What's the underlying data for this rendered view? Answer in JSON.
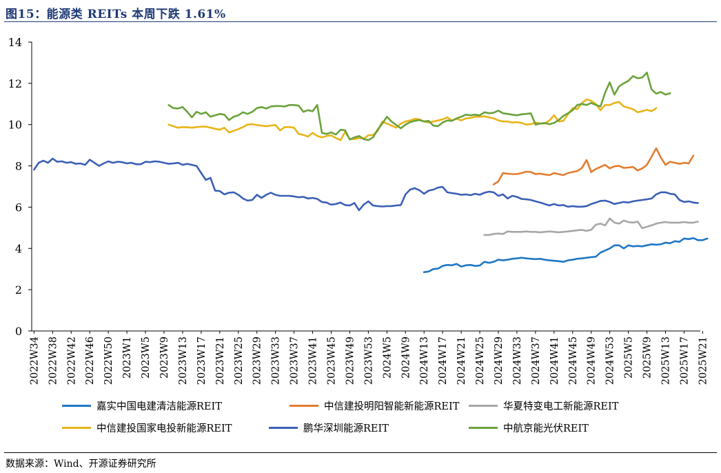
{
  "title": "图15：能源类 REITs 本周下跌 1.61%",
  "source": "数据来源：Wind、开源证券研究所",
  "chart_data": {
    "type": "line",
    "title": "图15：能源类 REITs 本周下跌 1.61%",
    "xlabel": "",
    "ylabel": "",
    "ylim": [
      0,
      14
    ],
    "yticks": [
      0,
      2,
      4,
      6,
      8,
      10,
      12,
      14
    ],
    "grid": false,
    "legend_position": "bottom",
    "x_tick_labels": [
      "2022W34",
      "2022W38",
      "2022W42",
      "2022W46",
      "2022W50",
      "2023W1",
      "2023W5",
      "2023W9",
      "2023W13",
      "2023W17",
      "2023W21",
      "2023W25",
      "2023W29",
      "2023W33",
      "2023W37",
      "2023W41",
      "2023W45",
      "2023W49",
      "2023W53",
      "2024W5",
      "2024W9",
      "2024W13",
      "2024W17",
      "2024W21",
      "2024W25",
      "2024W29",
      "2024W33",
      "2024W37",
      "2024W41",
      "2024W45",
      "2024W49",
      "2024W53",
      "2025W5",
      "2025W9",
      "2025W13",
      "2025W17",
      "2025W21"
    ],
    "series": [
      {
        "name": "嘉实中国电建清洁能源REIT",
        "color": "#1f77c4",
        "start_index": 84,
        "values": [
          2.85,
          2.88,
          3.0,
          3.02,
          3.15,
          3.2,
          3.18,
          3.25,
          3.12,
          3.18,
          3.2,
          3.15,
          3.17,
          3.35,
          3.3,
          3.35,
          3.45,
          3.42,
          3.45,
          3.5,
          3.52,
          3.55,
          3.52,
          3.5,
          3.48,
          3.5,
          3.45,
          3.42,
          3.4,
          3.38,
          3.35,
          3.42,
          3.45,
          3.5,
          3.52,
          3.55,
          3.58,
          3.6,
          3.8,
          3.9,
          4.0,
          4.15,
          4.15,
          4.0,
          4.15,
          4.1,
          4.12,
          4.1,
          4.15,
          4.2,
          4.18,
          4.2,
          4.28,
          4.25,
          4.35,
          4.32,
          4.48,
          4.45,
          4.5,
          4.4,
          4.4,
          4.48
        ]
      },
      {
        "name": "中信建投明阳智能新能源REIT",
        "color": "#e37b2e",
        "start_index": 99,
        "values": [
          7.1,
          7.25,
          7.65,
          7.62,
          7.6,
          7.6,
          7.65,
          7.72,
          7.7,
          7.6,
          7.62,
          7.58,
          7.55,
          7.65,
          7.6,
          7.55,
          7.65,
          7.7,
          7.75,
          7.9,
          8.28,
          7.7,
          7.85,
          7.95,
          8.05,
          7.88,
          7.98,
          8.0,
          7.9,
          7.92,
          7.95,
          7.78,
          7.88,
          8.05,
          8.45,
          8.85,
          8.4,
          8.05,
          8.2,
          8.15,
          8.1,
          8.15,
          8.12,
          8.5
        ]
      },
      {
        "name": "华夏特变电工新能源REIT",
        "color": "#a6a6a6",
        "start_index": 97,
        "values": [
          4.65,
          4.65,
          4.7,
          4.72,
          4.7,
          4.82,
          4.8,
          4.8,
          4.8,
          4.82,
          4.8,
          4.8,
          4.78,
          4.8,
          4.82,
          4.8,
          4.78,
          4.8,
          4.82,
          4.85,
          4.88,
          4.9,
          4.85,
          4.9,
          5.15,
          5.2,
          5.12,
          5.45,
          5.25,
          5.2,
          5.35,
          5.28,
          5.25,
          5.3,
          4.98,
          5.05,
          5.12,
          5.2,
          5.25,
          5.28,
          5.25,
          5.25,
          5.25,
          5.28,
          5.25,
          5.25,
          5.3
        ]
      },
      {
        "name": "中信建投国家电投新能源REIT",
        "color": "#e8b418",
        "start_index": 29,
        "values": [
          10.0,
          9.92,
          9.85,
          9.88,
          9.87,
          9.85,
          9.88,
          9.9,
          9.9,
          9.85,
          9.8,
          9.75,
          9.85,
          9.62,
          9.7,
          9.78,
          9.88,
          10.0,
          10.02,
          9.98,
          9.95,
          9.92,
          9.95,
          9.98,
          9.72,
          9.88,
          9.88,
          9.85,
          9.55,
          9.5,
          9.42,
          9.6,
          9.45,
          9.38,
          9.45,
          9.48,
          9.35,
          9.25,
          9.65,
          9.3,
          9.3,
          9.35,
          9.32,
          9.48,
          9.5,
          9.68,
          10.15,
          10.05,
          9.95,
          9.85,
          10.05,
          10.15,
          10.2,
          10.28,
          10.25,
          10.15,
          10.1,
          10.15,
          10.2,
          10.25,
          10.35,
          10.2,
          10.28,
          10.2,
          10.3,
          10.32,
          10.38,
          10.38,
          10.4,
          10.35,
          10.3,
          10.2,
          10.15,
          10.15,
          10.1,
          10.12,
          10.08,
          10.0,
          10.02,
          10.1,
          10.05,
          10.05,
          10.2,
          10.45,
          10.15,
          10.18,
          10.5,
          10.8,
          10.75,
          11.05,
          11.22,
          11.15,
          11.0,
          10.7,
          10.95,
          10.95,
          11.05,
          11.1,
          10.88,
          10.82,
          10.75,
          10.6,
          10.65,
          10.72,
          10.65,
          10.8
        ]
      },
      {
        "name": "鹏华深圳能源REIT",
        "color": "#3a5fb5",
        "start_index": 0,
        "values": [
          7.82,
          8.15,
          8.25,
          8.15,
          8.35,
          8.2,
          8.22,
          8.15,
          8.18,
          8.1,
          8.12,
          8.05,
          8.3,
          8.15,
          8.0,
          8.12,
          8.22,
          8.15,
          8.2,
          8.18,
          8.12,
          8.15,
          8.08,
          8.08,
          8.2,
          8.18,
          8.22,
          8.2,
          8.15,
          8.1,
          8.12,
          8.15,
          8.05,
          8.1,
          8.05,
          8.0,
          7.65,
          7.32,
          7.42,
          6.8,
          6.78,
          6.62,
          6.7,
          6.72,
          6.6,
          6.42,
          6.32,
          6.35,
          6.6,
          6.45,
          6.6,
          6.7,
          6.6,
          6.55,
          6.55,
          6.55,
          6.52,
          6.48,
          6.5,
          6.42,
          6.45,
          6.4,
          6.25,
          6.22,
          6.12,
          6.15,
          6.22,
          6.1,
          6.08,
          6.2,
          5.85,
          6.12,
          6.28,
          6.08,
          6.05,
          6.03,
          6.05,
          6.05,
          6.08,
          6.1,
          6.62,
          6.85,
          6.92,
          6.82,
          6.65,
          6.8,
          6.85,
          6.95,
          6.98,
          6.72,
          6.68,
          6.65,
          6.6,
          6.62,
          6.58,
          6.65,
          6.6,
          6.7,
          6.75,
          6.72,
          6.55,
          6.62,
          6.42,
          6.55,
          6.5,
          6.4,
          6.38,
          6.35,
          6.28,
          6.22,
          6.15,
          6.08,
          6.15,
          6.08,
          6.1,
          6.02,
          6.05,
          6.02,
          6.02,
          6.05,
          6.15,
          6.22,
          6.3,
          6.32,
          6.25,
          6.15,
          6.2,
          6.25,
          6.22,
          6.28,
          6.32,
          6.35,
          6.38,
          6.42,
          6.62,
          6.72,
          6.72,
          6.65,
          6.62,
          6.35,
          6.25,
          6.28,
          6.22,
          6.2
        ]
      },
      {
        "name": "中航京能光伏REIT",
        "color": "#6aa23a",
        "start_index": 29,
        "values": [
          10.95,
          10.8,
          10.78,
          10.85,
          10.62,
          10.35,
          10.62,
          10.52,
          10.6,
          10.38,
          10.45,
          10.52,
          10.48,
          10.22,
          10.38,
          10.45,
          10.6,
          10.52,
          10.62,
          10.8,
          10.85,
          10.78,
          10.88,
          10.9,
          10.9,
          10.88,
          10.95,
          10.95,
          10.92,
          10.62,
          10.7,
          10.65,
          10.95,
          9.6,
          9.55,
          9.62,
          9.52,
          9.75,
          9.72,
          9.28,
          9.38,
          9.45,
          9.3,
          9.25,
          9.38,
          9.75,
          10.05,
          10.38,
          10.15,
          9.98,
          9.82,
          10.0,
          10.12,
          10.18,
          10.22,
          10.15,
          10.18,
          9.95,
          9.92,
          10.1,
          10.2,
          10.18,
          10.3,
          10.38,
          10.48,
          10.45,
          10.48,
          10.45,
          10.6,
          10.55,
          10.58,
          10.68,
          10.55,
          10.52,
          10.48,
          10.45,
          10.5,
          10.52,
          10.55,
          10.0,
          10.05,
          10.08,
          10.02,
          10.08,
          10.22,
          10.42,
          10.55,
          10.7,
          10.95,
          11.0,
          10.95,
          11.05,
          10.95,
          10.88,
          11.55,
          12.05,
          11.45,
          11.85,
          12.0,
          12.12,
          12.35,
          12.25,
          12.28,
          12.52,
          11.7,
          11.5,
          11.58,
          11.45,
          11.52
        ]
      }
    ]
  }
}
